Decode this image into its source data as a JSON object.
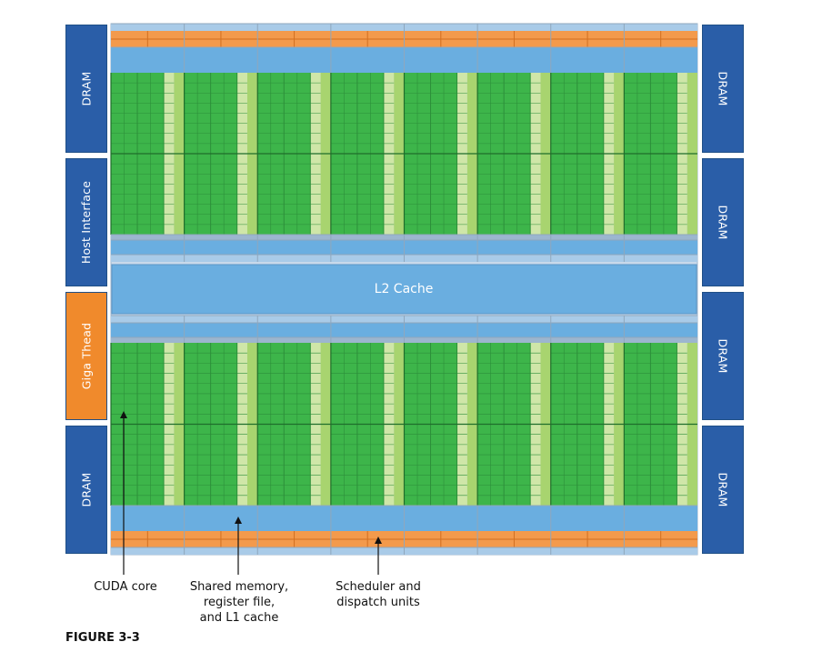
{
  "diagram": {
    "left_blocks": [
      {
        "label": "DRAM",
        "color": "#2a5ea8"
      },
      {
        "label": "Host Interface",
        "color": "#2a5ea8"
      },
      {
        "label": "Giga Thead",
        "color": "#f08a2c"
      },
      {
        "label": "DRAM",
        "color": "#2a5ea8"
      }
    ],
    "right_blocks": [
      {
        "label": "DRAM",
        "color": "#2a5ea8"
      },
      {
        "label": "DRAM",
        "color": "#2a5ea8"
      },
      {
        "label": "DRAM",
        "color": "#2a5ea8"
      },
      {
        "label": "DRAM",
        "color": "#2a5ea8"
      }
    ],
    "l2_cache": {
      "label": "L2 Cache",
      "color": "#6aaee0"
    },
    "sm_columns": 8,
    "colors": {
      "cuda_core": "#3db54a",
      "special_unit": "#a8d46f",
      "memory": "#6aaee0",
      "memory_light": "#a9cbe8",
      "scheduler": "#f39a4c"
    },
    "callouts": [
      {
        "label": "CUDA core"
      },
      {
        "label": "Shared memory,\nregister file,\nand L1 cache"
      },
      {
        "label": "Scheduler and\ndispatch units"
      }
    ],
    "figure_label": "FIGURE 3-3"
  }
}
